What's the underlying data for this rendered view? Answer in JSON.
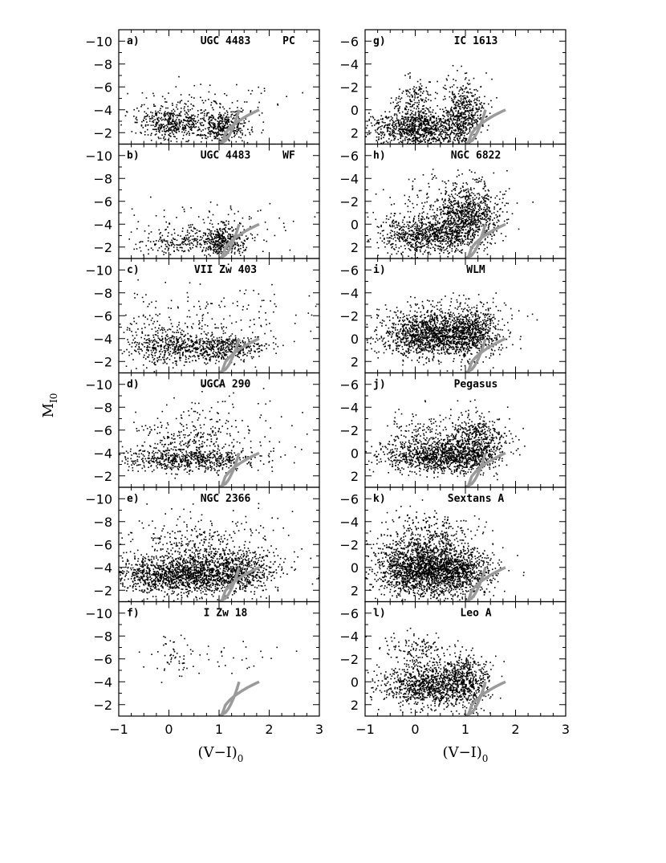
{
  "figure": {
    "xlabel_main": "(V−I)",
    "xlabel_sub": "0",
    "ylabel_main": "M",
    "ylabel_sub": "I0"
  },
  "chart_data": [
    {
      "type": "scatter",
      "panel": "a)",
      "title": "UGC 4483",
      "note": "PC",
      "xlim": [
        -1,
        3
      ],
      "ylim": [
        -11,
        -1
      ],
      "yticks": [
        "-10",
        "-8",
        "-6",
        "-4",
        "-2"
      ],
      "xticks": [],
      "tracks": true,
      "clouds": [
        {
          "cx": 0.05,
          "cy": -2.9,
          "sx": 0.35,
          "sy": 0.7,
          "n": 420
        },
        {
          "cx": 1.05,
          "cy": -2.6,
          "sx": 0.25,
          "sy": 0.7,
          "n": 380
        },
        {
          "cx": 0.6,
          "cy": -4.5,
          "sx": 0.9,
          "sy": 1.1,
          "n": 120
        }
      ]
    },
    {
      "type": "scatter",
      "panel": "b)",
      "title": "UGC 4483",
      "note": "WF",
      "xlim": [
        -1,
        3
      ],
      "ylim": [
        -11,
        -1
      ],
      "yticks": [
        "-10",
        "-8",
        "-6",
        "-4",
        "-2"
      ],
      "xticks": [],
      "tracks": true,
      "clouds": [
        {
          "cx": 0.2,
          "cy": -2.5,
          "sx": 0.45,
          "sy": 0.5,
          "n": 200
        },
        {
          "cx": 1.05,
          "cy": -2.6,
          "sx": 0.22,
          "sy": 0.7,
          "n": 380
        },
        {
          "cx": 0.8,
          "cy": -4.2,
          "sx": 0.8,
          "sy": 1.2,
          "n": 90
        }
      ]
    },
    {
      "type": "scatter",
      "panel": "c)",
      "title": "VII Zw 403",
      "note": "",
      "xlim": [
        -1,
        3
      ],
      "ylim": [
        -11,
        -1
      ],
      "yticks": [
        "-10",
        "-8",
        "-6",
        "-4",
        "-2"
      ],
      "xticks": [],
      "tracks": true,
      "clouds": [
        {
          "cx": -0.1,
          "cy": -3.4,
          "sx": 0.4,
          "sy": 0.9,
          "n": 400
        },
        {
          "cx": 1.0,
          "cy": -3.2,
          "sx": 0.45,
          "sy": 0.6,
          "n": 520
        },
        {
          "cx": 0.6,
          "cy": -6.0,
          "sx": 0.9,
          "sy": 1.5,
          "n": 160
        }
      ]
    },
    {
      "type": "scatter",
      "panel": "d)",
      "title": "UGCA 290",
      "note": "",
      "xlim": [
        -1,
        3
      ],
      "ylim": [
        -11,
        -1
      ],
      "yticks": [
        "-10",
        "-8",
        "-6",
        "-4",
        "-2"
      ],
      "xticks": [],
      "tracks": true,
      "clouds": [
        {
          "cx": 0.4,
          "cy": -3.5,
          "sx": 0.7,
          "sy": 0.5,
          "n": 650
        },
        {
          "cx": 0.3,
          "cy": -5.5,
          "sx": 0.5,
          "sy": 1.2,
          "n": 220
        },
        {
          "cx": 1.2,
          "cy": -6.5,
          "sx": 0.6,
          "sy": 1.6,
          "n": 90
        }
      ]
    },
    {
      "type": "scatter",
      "panel": "e)",
      "title": "NGC 2366",
      "note": "",
      "xlim": [
        -1,
        3
      ],
      "ylim": [
        -11,
        -1
      ],
      "yticks": [
        "-10",
        "-8",
        "-6",
        "-4",
        "-2"
      ],
      "xticks": [],
      "tracks": true,
      "clouds": [
        {
          "cx": 0.3,
          "cy": -3.4,
          "sx": 0.75,
          "sy": 0.8,
          "n": 1500
        },
        {
          "cx": 1.2,
          "cy": -3.8,
          "sx": 0.5,
          "sy": 1.0,
          "n": 500
        },
        {
          "cx": 0.6,
          "cy": -6.0,
          "sx": 0.8,
          "sy": 1.3,
          "n": 350
        }
      ]
    },
    {
      "type": "scatter",
      "panel": "f)",
      "title": "I Zw 18",
      "note": "",
      "xlim": [
        -1,
        3
      ],
      "ylim": [
        -11,
        -1
      ],
      "yticks": [
        "-10",
        "-8",
        "-6",
        "-4",
        "-2"
      ],
      "xticks": [
        "-1",
        "0",
        "1",
        "2",
        "3"
      ],
      "tracks": true,
      "clouds": [
        {
          "cx": 0.1,
          "cy": -6.3,
          "sx": 0.25,
          "sy": 0.9,
          "n": 55
        },
        {
          "cx": 1.2,
          "cy": -6.3,
          "sx": 0.6,
          "sy": 0.8,
          "n": 25
        }
      ]
    },
    {
      "type": "scatter",
      "panel": "g)",
      "title": "IC 1613",
      "note": "",
      "xlim": [
        -1,
        3
      ],
      "ylim": [
        -7,
        3
      ],
      "yticks": [
        "-6",
        "-4",
        "-2",
        "0",
        "2"
      ],
      "xticks": [],
      "tracks": true,
      "clouds": [
        {
          "cx": 0.05,
          "cy": 1.6,
          "sx": 0.45,
          "sy": 0.8,
          "n": 900
        },
        {
          "cx": 0.95,
          "cy": 0.3,
          "sx": 0.2,
          "sy": 1.4,
          "n": 500
        },
        {
          "cx": -0.05,
          "cy": -0.5,
          "sx": 0.2,
          "sy": 1.2,
          "n": 200
        }
      ]
    },
    {
      "type": "scatter",
      "panel": "h)",
      "title": "NGC 6822",
      "note": "",
      "xlim": [
        -1,
        3
      ],
      "ylim": [
        -7,
        3
      ],
      "yticks": [
        "-6",
        "-4",
        "-2",
        "0",
        "2"
      ],
      "xticks": [],
      "tracks": true,
      "clouds": [
        {
          "cx": 0.25,
          "cy": 0.9,
          "sx": 0.5,
          "sy": 0.8,
          "n": 800
        },
        {
          "cx": 1.05,
          "cy": -0.8,
          "sx": 0.3,
          "sy": 1.3,
          "n": 700
        },
        {
          "cx": 0.6,
          "cy": -1.5,
          "sx": 0.6,
          "sy": 1.4,
          "n": 250
        }
      ]
    },
    {
      "type": "scatter",
      "panel": "i)",
      "title": "WLM",
      "note": "",
      "xlim": [
        -1,
        3
      ],
      "ylim": [
        -7,
        3
      ],
      "yticks": [
        "-6",
        "-4",
        "-2",
        "0",
        "2"
      ],
      "xticks": [],
      "tracks": true,
      "clouds": [
        {
          "cx": 0.3,
          "cy": -0.3,
          "sx": 0.5,
          "sy": 0.9,
          "n": 1200
        },
        {
          "cx": 1.1,
          "cy": -0.5,
          "sx": 0.3,
          "sy": 1.1,
          "n": 600
        },
        {
          "cx": 0.5,
          "cy": -2.0,
          "sx": 0.7,
          "sy": 0.9,
          "n": 200
        }
      ]
    },
    {
      "type": "scatter",
      "panel": "j)",
      "title": "Pegasus",
      "note": "",
      "xlim": [
        -1,
        3
      ],
      "ylim": [
        -7,
        3
      ],
      "yticks": [
        "-6",
        "-4",
        "-2",
        "0",
        "2"
      ],
      "xticks": [],
      "tracks": true,
      "clouds": [
        {
          "cx": 0.5,
          "cy": 0.3,
          "sx": 0.55,
          "sy": 0.7,
          "n": 1000
        },
        {
          "cx": 1.15,
          "cy": -1.0,
          "sx": 0.3,
          "sy": 1.2,
          "n": 600
        },
        {
          "cx": 0.0,
          "cy": -1.5,
          "sx": 0.3,
          "sy": 1.0,
          "n": 150
        }
      ]
    },
    {
      "type": "scatter",
      "panel": "k)",
      "title": "Sextans A",
      "note": "",
      "xlim": [
        -1,
        3
      ],
      "ylim": [
        -7,
        3
      ],
      "yticks": [
        "-6",
        "-4",
        "-2",
        "0",
        "2"
      ],
      "xticks": [],
      "tracks": true,
      "clouds": [
        {
          "cx": 0.1,
          "cy": 0.0,
          "sx": 0.45,
          "sy": 1.2,
          "n": 1700
        },
        {
          "cx": 0.9,
          "cy": 0.3,
          "sx": 0.35,
          "sy": 1.0,
          "n": 700
        },
        {
          "cx": 0.3,
          "cy": -3.0,
          "sx": 0.5,
          "sy": 1.0,
          "n": 250
        }
      ]
    },
    {
      "type": "scatter",
      "panel": "l)",
      "title": "Leo A",
      "note": "",
      "xlim": [
        -1,
        3
      ],
      "ylim": [
        -7,
        3
      ],
      "yticks": [
        "-6",
        "-4",
        "-2",
        "0",
        "2"
      ],
      "xticks": [
        "-1",
        "0",
        "1",
        "2",
        "3"
      ],
      "tracks": true,
      "clouds": [
        {
          "cx": 0.2,
          "cy": 0.3,
          "sx": 0.45,
          "sy": 0.9,
          "n": 900
        },
        {
          "cx": 1.0,
          "cy": -0.2,
          "sx": 0.25,
          "sy": 1.2,
          "n": 500
        },
        {
          "cx": 0.0,
          "cy": -2.8,
          "sx": 0.3,
          "sy": 0.8,
          "n": 150
        }
      ]
    }
  ]
}
